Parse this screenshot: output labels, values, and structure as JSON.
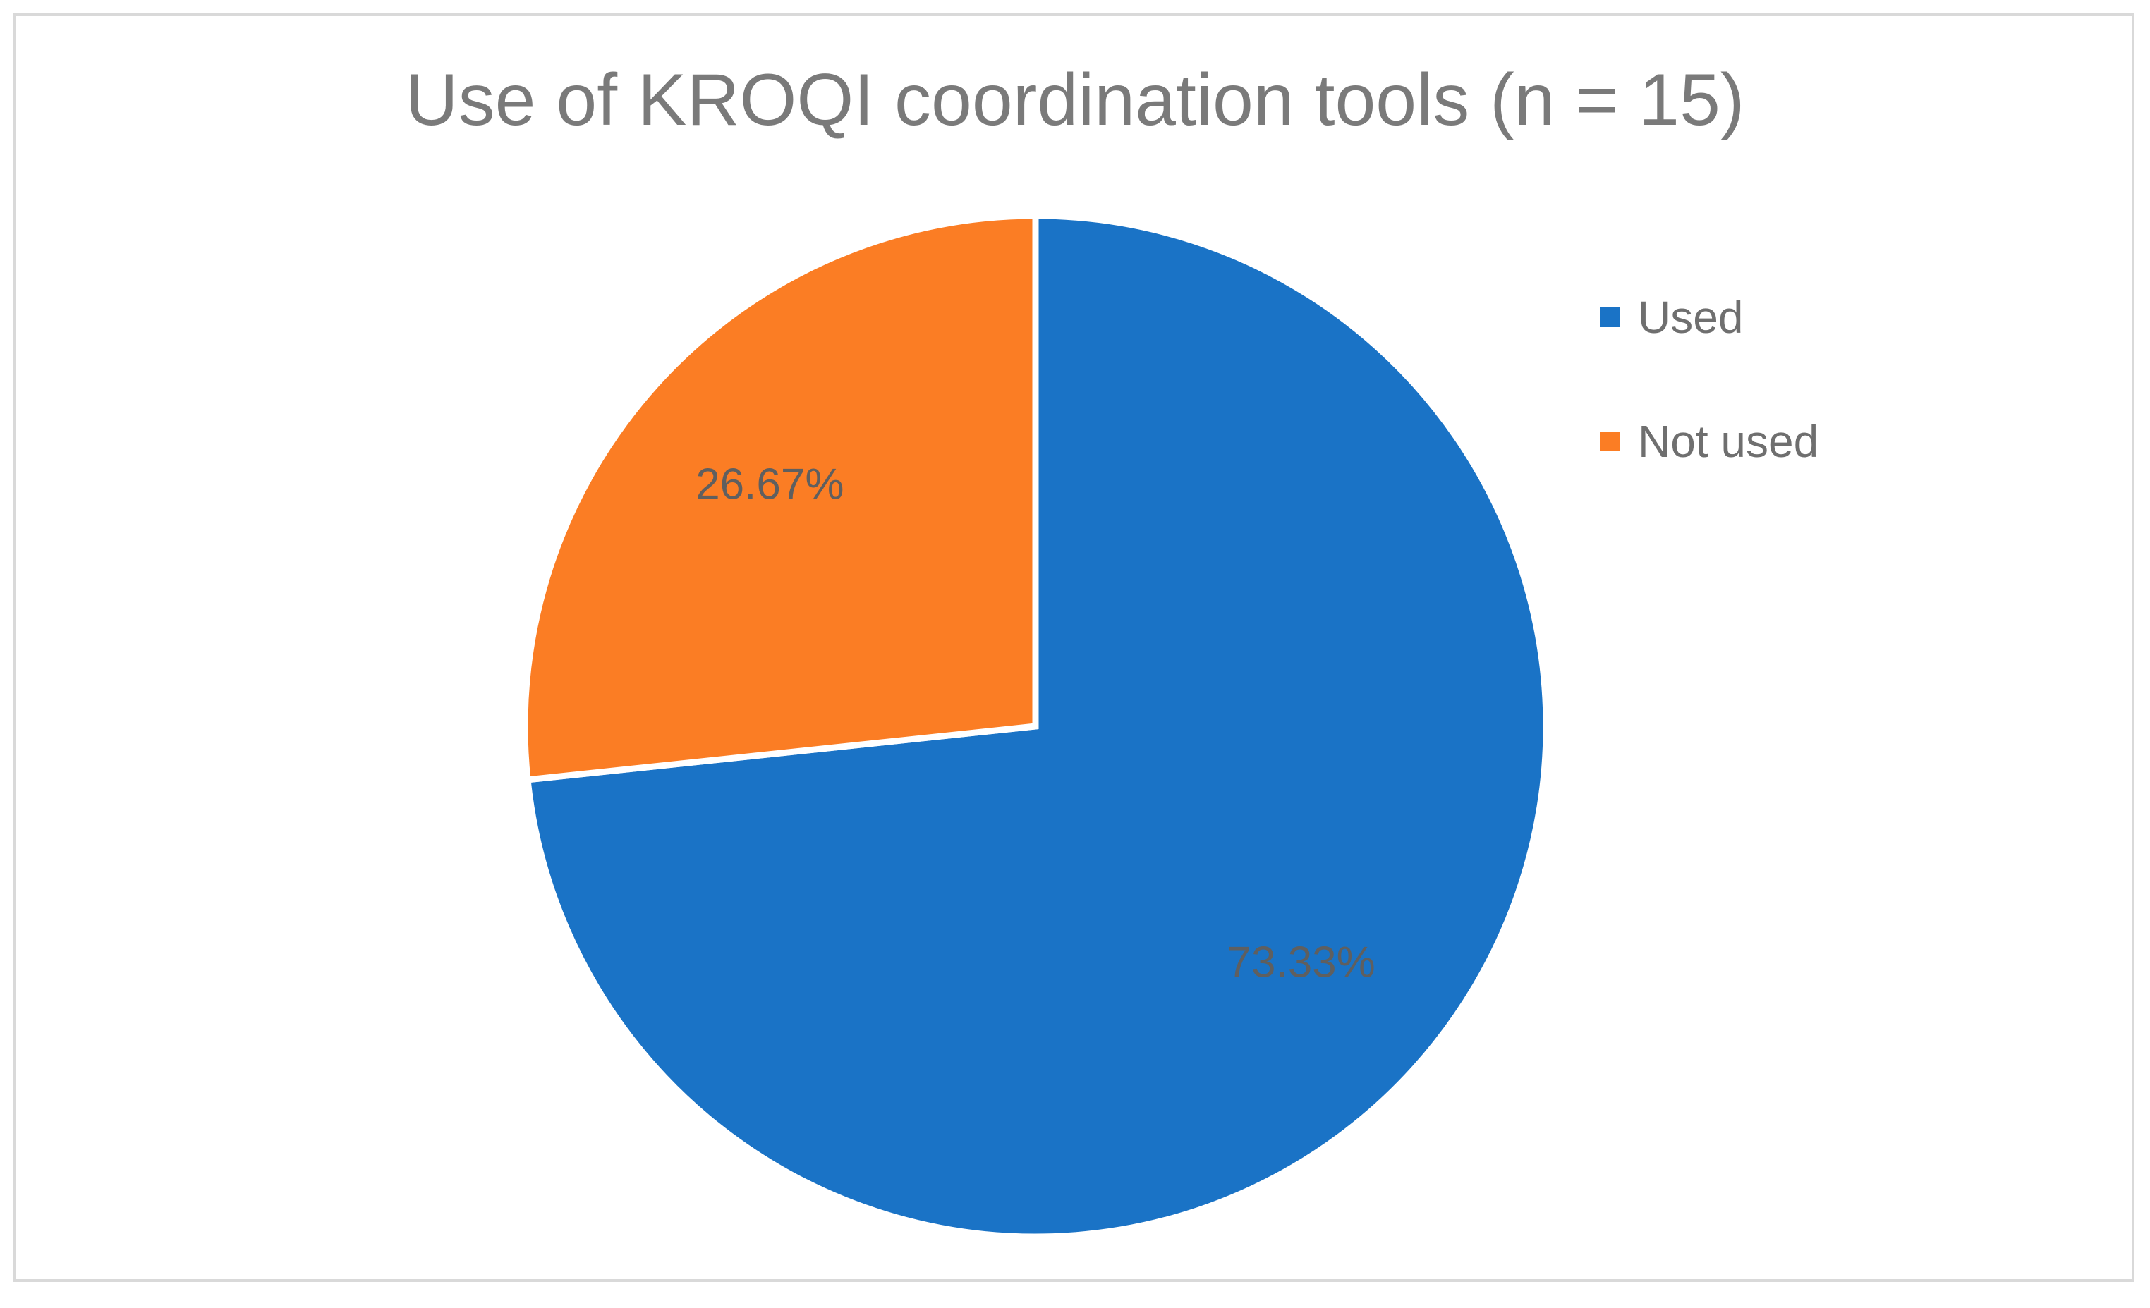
{
  "chart_data": {
    "type": "pie",
    "title": "Use of KROQI coordination tools (n = 15)",
    "slices": [
      {
        "label": "Used",
        "value": 73.33,
        "display": "73.33%",
        "color": "#1a73c6"
      },
      {
        "label": "Not used",
        "value": 26.67,
        "display": "26.67%",
        "color": "#fb7d24"
      }
    ],
    "start_angle_deg": 0,
    "direction": "clockwise",
    "legend_position": "right",
    "slice_border_color": "#ffffff",
    "data_label_color": "#5f5f5f"
  }
}
